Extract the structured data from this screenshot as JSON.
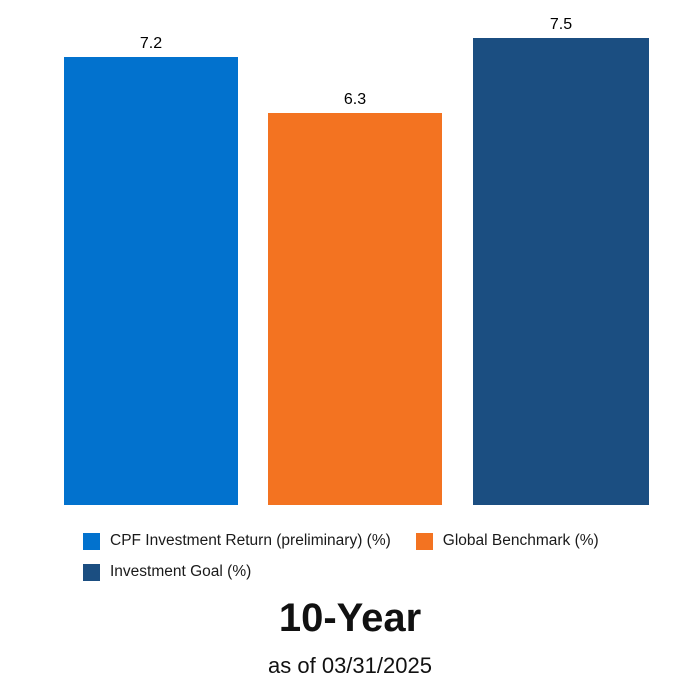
{
  "chart_data": {
    "type": "bar",
    "categories": [
      "CPF Investment Return (preliminary) (%)",
      "Global Benchmark (%)",
      "Investment Goal (%)"
    ],
    "values": [
      7.2,
      6.3,
      7.5
    ],
    "value_labels": [
      "7.2",
      "6.3",
      "7.5"
    ],
    "colors": [
      "#0272CE",
      "#F37321",
      "#1B4E81"
    ],
    "title": "10-Year",
    "subtitle": "as of 03/31/2025",
    "ylim": [
      0,
      7.5
    ],
    "grid": false,
    "axes_visible": false,
    "legend_position": "bottom",
    "background_color": "#FFFFFF",
    "text_color": "#1A1A1A"
  }
}
